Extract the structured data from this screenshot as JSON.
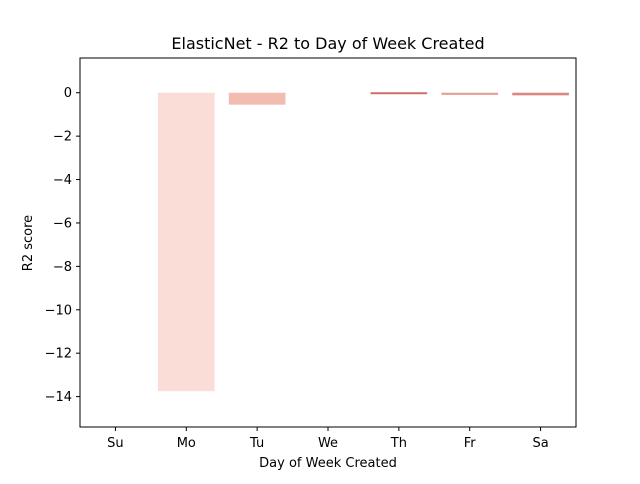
{
  "chart_data": {
    "type": "bar",
    "title": "ElasticNet - R2 to Day of Week Created",
    "xlabel": "Day of Week Created",
    "ylabel": "R2 score",
    "categories": [
      "Su",
      "Mo",
      "Tu",
      "We",
      "Th",
      "Fr",
      "Sa"
    ],
    "values": [
      null,
      -13.75,
      -0.55,
      null,
      -0.05,
      -0.1,
      -0.12
    ],
    "ylim": [
      -15.4,
      1.6
    ],
    "yticks": [
      0,
      -2,
      -4,
      -6,
      -8,
      -10,
      -12,
      -14
    ],
    "ytick_labels": [
      "0",
      "−2",
      "−4",
      "−6",
      "−8",
      "−10",
      "−12",
      "−14"
    ],
    "bar_colors": [
      "#f9ddd6",
      "#f9ddd6",
      "#f2bcb1",
      "#f9ddd6",
      "#cf6f6a",
      "#e3a093",
      "#d88880"
    ],
    "grid": false,
    "legend": "none"
  }
}
